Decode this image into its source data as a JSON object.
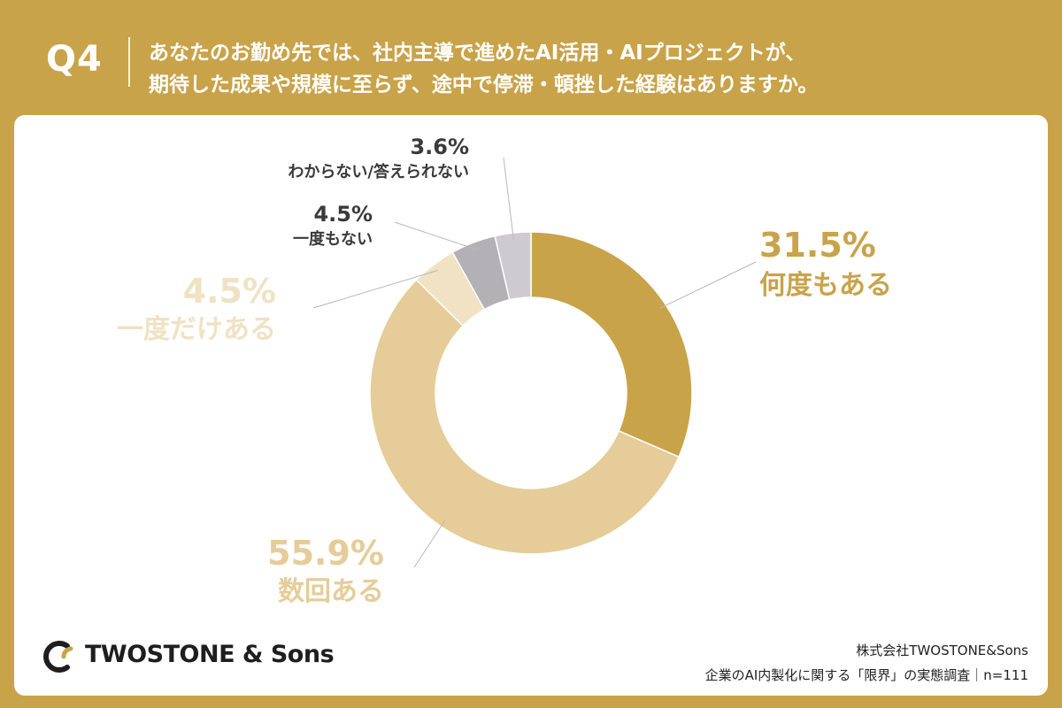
{
  "question": {
    "number": "Q4",
    "line1": "あなたのお勤め先では、社内主導で進めたAI活用・AIプロジェクトが、",
    "line2": "期待した成果や規模に至らず、途中で停滞・頓挫した経験はありますか。"
  },
  "chart_data": {
    "type": "pie",
    "style": "donut",
    "start_angle": "12 o'clock",
    "direction": "clockwise",
    "categories": [
      "何度もある",
      "数回ある",
      "一度だけある",
      "一度もない",
      "わからない/答えられない"
    ],
    "values": [
      31.5,
      55.9,
      4.5,
      4.5,
      3.6
    ],
    "value_labels": [
      "31.5%",
      "55.9%",
      "4.5%",
      "4.5%",
      "3.6%"
    ],
    "colors": [
      "#c9a349",
      "#e6cc98",
      "#f0e2c3",
      "#b3b1b5",
      "#cdcbcf"
    ],
    "label_colors": [
      "#c9a349",
      "#e6cc98",
      "#f0e2c3",
      "#3a3a3a",
      "#3a3a3a"
    ]
  },
  "footer": {
    "brand": "TWOSTONE & Sons",
    "company": "株式会社TWOSTONE&Sons",
    "survey": "企業のAI内製化に関する「限界」の実態調査｜n=111"
  }
}
